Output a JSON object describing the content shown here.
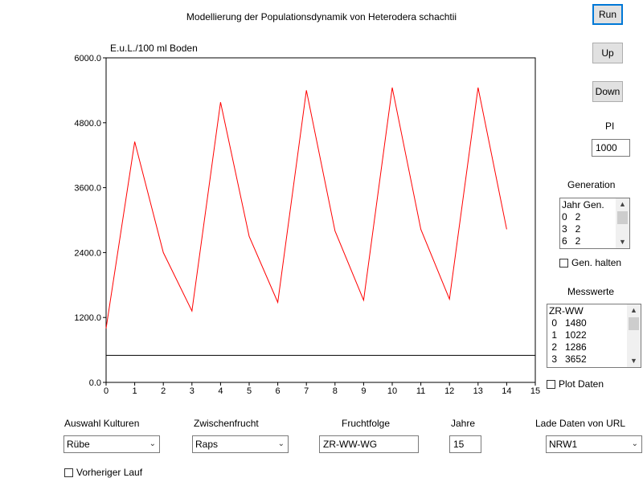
{
  "title": "Modellierung der Populationsdynamik von Heterodera schachtii",
  "buttons": {
    "run": "Run",
    "up": "Up",
    "down": "Down"
  },
  "pi": {
    "label": "PI",
    "value": "1000"
  },
  "generation": {
    "label": "Generation",
    "rows": [
      "Jahr Gen.",
      "0   2",
      "3   2",
      "6   2"
    ],
    "hold_label": "Gen. halten",
    "hold_checked": false
  },
  "messwerte": {
    "label": "Messwerte",
    "rows": [
      "ZR-WW",
      " 0   1480",
      " 1   1022",
      " 2   1286",
      " 3   3652"
    ],
    "plot_label": "Plot Daten",
    "plot_checked": false
  },
  "bottom": {
    "kulturen": {
      "label": "Auswahl Kulturen",
      "value": "Rübe"
    },
    "zwischenfrucht": {
      "label": "Zwischenfrucht",
      "value": "Raps"
    },
    "fruchtfolge": {
      "label": "Fruchtfolge",
      "value": "ZR-WW-WG"
    },
    "jahre": {
      "label": "Jahre",
      "value": "15"
    },
    "url": {
      "label": "Lade Daten von URL",
      "value": "NRW1"
    },
    "vorheriger_label": "Vorheriger Lauf",
    "vorheriger_checked": false
  },
  "chart_data": {
    "type": "line",
    "ylabel": "E.u.L./100 ml Boden",
    "xlabel": "",
    "xlim": [
      0,
      15
    ],
    "ylim": [
      0,
      6000
    ],
    "x_ticks": [
      "0",
      "1",
      "2",
      "3",
      "4",
      "5",
      "6",
      "7",
      "8",
      "9",
      "10",
      "11",
      "12",
      "13",
      "14",
      "15"
    ],
    "y_ticks": [
      "0.0",
      "1200.0",
      "2400.0",
      "3600.0",
      "4800.0",
      "6000.0"
    ],
    "series": [
      {
        "color": "#ff0000",
        "x": [
          0,
          1,
          2,
          3,
          4,
          5,
          6,
          7,
          8,
          9,
          10,
          11,
          12,
          13,
          14
        ],
        "values": [
          1000,
          4450,
          2400,
          1320,
          5180,
          2700,
          1480,
          5400,
          2800,
          1520,
          5450,
          2830,
          1540,
          5450,
          2830
        ]
      }
    ],
    "threshold_line": 500,
    "threshold_color": "#000000"
  }
}
